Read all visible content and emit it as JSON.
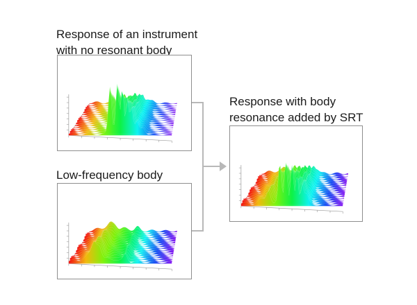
{
  "panels": [
    {
      "key": "no_body",
      "caption": [
        "Response of an instrument",
        "with no resonant body"
      ],
      "icon": "waterfall-3d-plot-icon"
    },
    {
      "key": "low_freq",
      "caption": [
        "Low-frequency body"
      ],
      "icon": "waterfall-3d-plot-icon"
    },
    {
      "key": "combined",
      "caption": [
        "Response with body",
        "resonance added by SRT"
      ],
      "icon": "waterfall-3d-plot-icon"
    }
  ],
  "connector": {
    "color": "#b8b8b8",
    "icon": "arrow-right-icon"
  }
}
